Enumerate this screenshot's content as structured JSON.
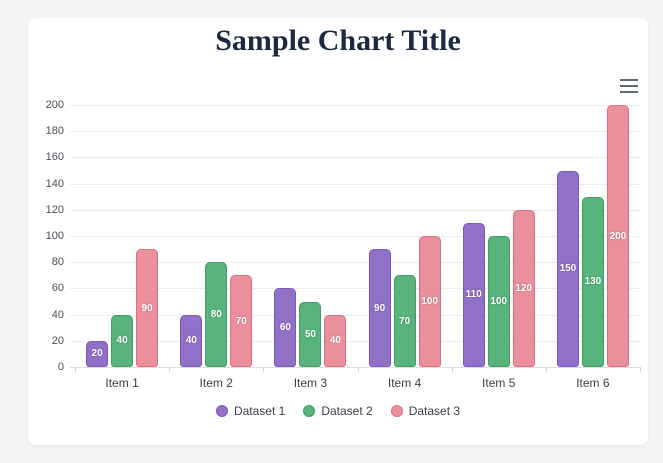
{
  "page": {
    "background_color": "#f4f4f5",
    "card_background_color": "#ffffff"
  },
  "header": {
    "title_color": "#1b2a41"
  },
  "toolbar": {
    "menu_icon": "hamburger-menu",
    "menu_icon_color": "#5f6b76"
  },
  "chart_data": {
    "type": "bar",
    "title": "Sample Chart Title",
    "categories": [
      "Item 1",
      "Item 2",
      "Item 3",
      "Item 4",
      "Item 5",
      "Item 6"
    ],
    "series": [
      {
        "name": "Dataset 1",
        "values": [
          20,
          40,
          60,
          90,
          110,
          150
        ],
        "fill": "#9170c8",
        "border": "#7a5ab8"
      },
      {
        "name": "Dataset 2",
        "values": [
          40,
          80,
          50,
          70,
          100,
          130
        ],
        "fill": "#58b47c",
        "border": "#3f9f63"
      },
      {
        "name": "Dataset 3",
        "values": [
          90,
          70,
          40,
          100,
          120,
          200
        ],
        "fill": "#e9909c",
        "border": "#e06f7e"
      }
    ],
    "ylim": [
      0,
      200
    ],
    "ytick_step": 20,
    "grid": true,
    "value_labels": true,
    "legend_position": "bottom",
    "xlabel": "",
    "ylabel": "",
    "gridline_color": "#ececee",
    "axis_label_color": "#4a4e55",
    "value_label_color": "#ffffff"
  }
}
